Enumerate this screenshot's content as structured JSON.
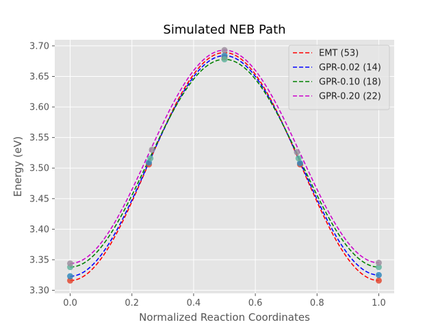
{
  "chart_data": {
    "type": "line",
    "title": "Simulated NEB Path",
    "xlabel": "Normalized Reaction Coordinates",
    "ylabel": "Energy (eV)",
    "xlim": [
      -0.05,
      1.05
    ],
    "ylim": [
      3.295,
      3.71
    ],
    "xticks": [
      "0.0",
      "0.2",
      "0.4",
      "0.6",
      "0.8",
      "1.0"
    ],
    "yticks": [
      "3.30",
      "3.35",
      "3.40",
      "3.45",
      "3.50",
      "3.55",
      "3.60",
      "3.65",
      "3.70"
    ],
    "grid": true,
    "legend_position": "top-right",
    "series": [
      {
        "name": "EMT (53)",
        "color": "#ff0000",
        "marker_color": "#e24a33",
        "curve": {
          "min_start": 3.316,
          "peak": 3.689,
          "min_end": 3.316
        },
        "points": [
          {
            "x": 0.0,
            "y": 3.316
          },
          {
            "x": 0.255,
            "y": 3.506
          },
          {
            "x": 0.5,
            "y": 3.681
          },
          {
            "x": 0.745,
            "y": 3.506
          },
          {
            "x": 1.0,
            "y": 3.316
          }
        ]
      },
      {
        "name": "GPR-0.02 (14)",
        "color": "#0000ff",
        "marker_color": "#348abd",
        "curve": {
          "min_start": 3.323,
          "peak": 3.684,
          "min_end": 3.325
        },
        "points": [
          {
            "x": 0.0,
            "y": 3.323
          },
          {
            "x": 0.255,
            "y": 3.509
          },
          {
            "x": 0.5,
            "y": 3.684
          },
          {
            "x": 0.745,
            "y": 3.508
          },
          {
            "x": 1.0,
            "y": 3.325
          }
        ]
      },
      {
        "name": "GPR-0.10 (18)",
        "color": "#008000",
        "marker_color": "#64b5a0",
        "curve": {
          "min_start": 3.338,
          "peak": 3.678,
          "min_end": 3.338
        },
        "points": [
          {
            "x": 0.0,
            "y": 3.338
          },
          {
            "x": 0.26,
            "y": 3.516
          },
          {
            "x": 0.5,
            "y": 3.678
          },
          {
            "x": 0.74,
            "y": 3.516
          },
          {
            "x": 1.0,
            "y": 3.338
          }
        ]
      },
      {
        "name": "GPR-0.20 (22)",
        "color": "#cc00cc",
        "marker_color": "#9f8fa0",
        "curve": {
          "min_start": 3.344,
          "peak": 3.693,
          "min_end": 3.345
        },
        "points": [
          {
            "x": 0.0,
            "y": 3.344
          },
          {
            "x": 0.265,
            "y": 3.53
          },
          {
            "x": 0.5,
            "y": 3.693
          },
          {
            "x": 0.735,
            "y": 3.526
          },
          {
            "x": 1.0,
            "y": 3.345
          }
        ]
      }
    ]
  }
}
